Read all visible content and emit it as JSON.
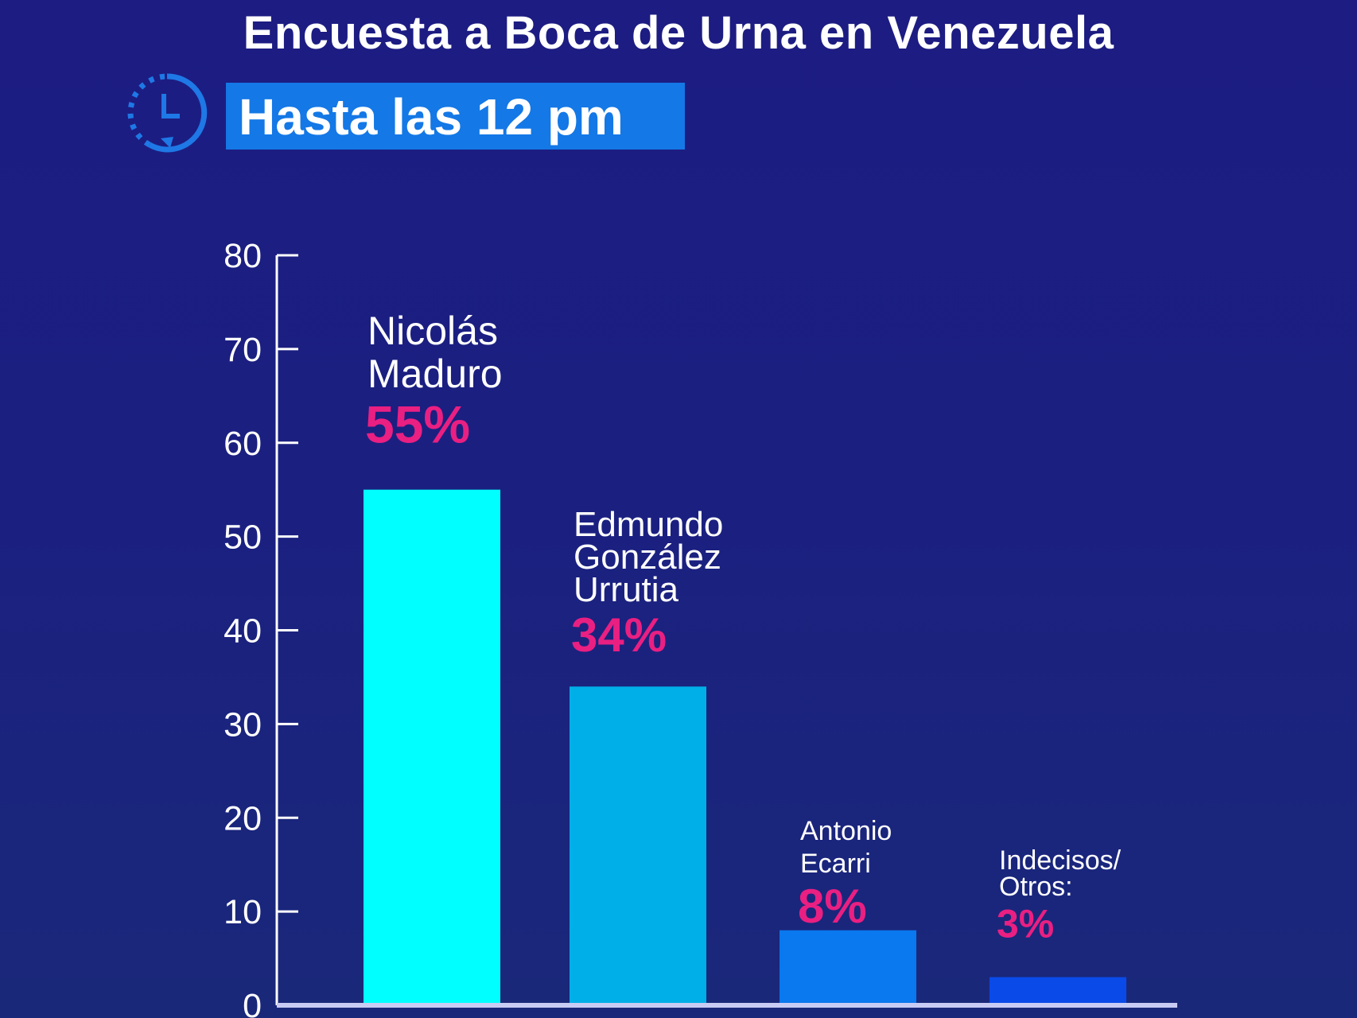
{
  "chart_data": {
    "type": "bar",
    "title": "Encuesta a Boca de Urna en Venezuela",
    "subtitle": "Hasta las 12 pm",
    "icon": "clock-icon",
    "categories": [
      [
        "Nicolás",
        "Maduro"
      ],
      [
        "Edmundo",
        "González",
        "Urrutia"
      ],
      [
        "Antonio",
        "Ecarri"
      ],
      [
        "Indecisos/",
        "Otros:"
      ]
    ],
    "values": [
      55,
      34,
      8,
      3
    ],
    "data_labels": [
      "55%",
      "34%",
      "8%",
      "3%"
    ],
    "ylim": [
      0,
      80
    ],
    "yticks": [
      "0",
      "10",
      "20",
      "30",
      "40",
      "50",
      "60",
      "70",
      "80"
    ],
    "xlabel": "",
    "ylabel": "",
    "grid": false,
    "colors": {
      "bars": [
        "#00ffff",
        "#00aee8",
        "#0a78ee",
        "#0a4ae8"
      ],
      "labels": "#ea1f82",
      "subtitle_box": "#1478e6",
      "background": "#1c1c82"
    }
  }
}
